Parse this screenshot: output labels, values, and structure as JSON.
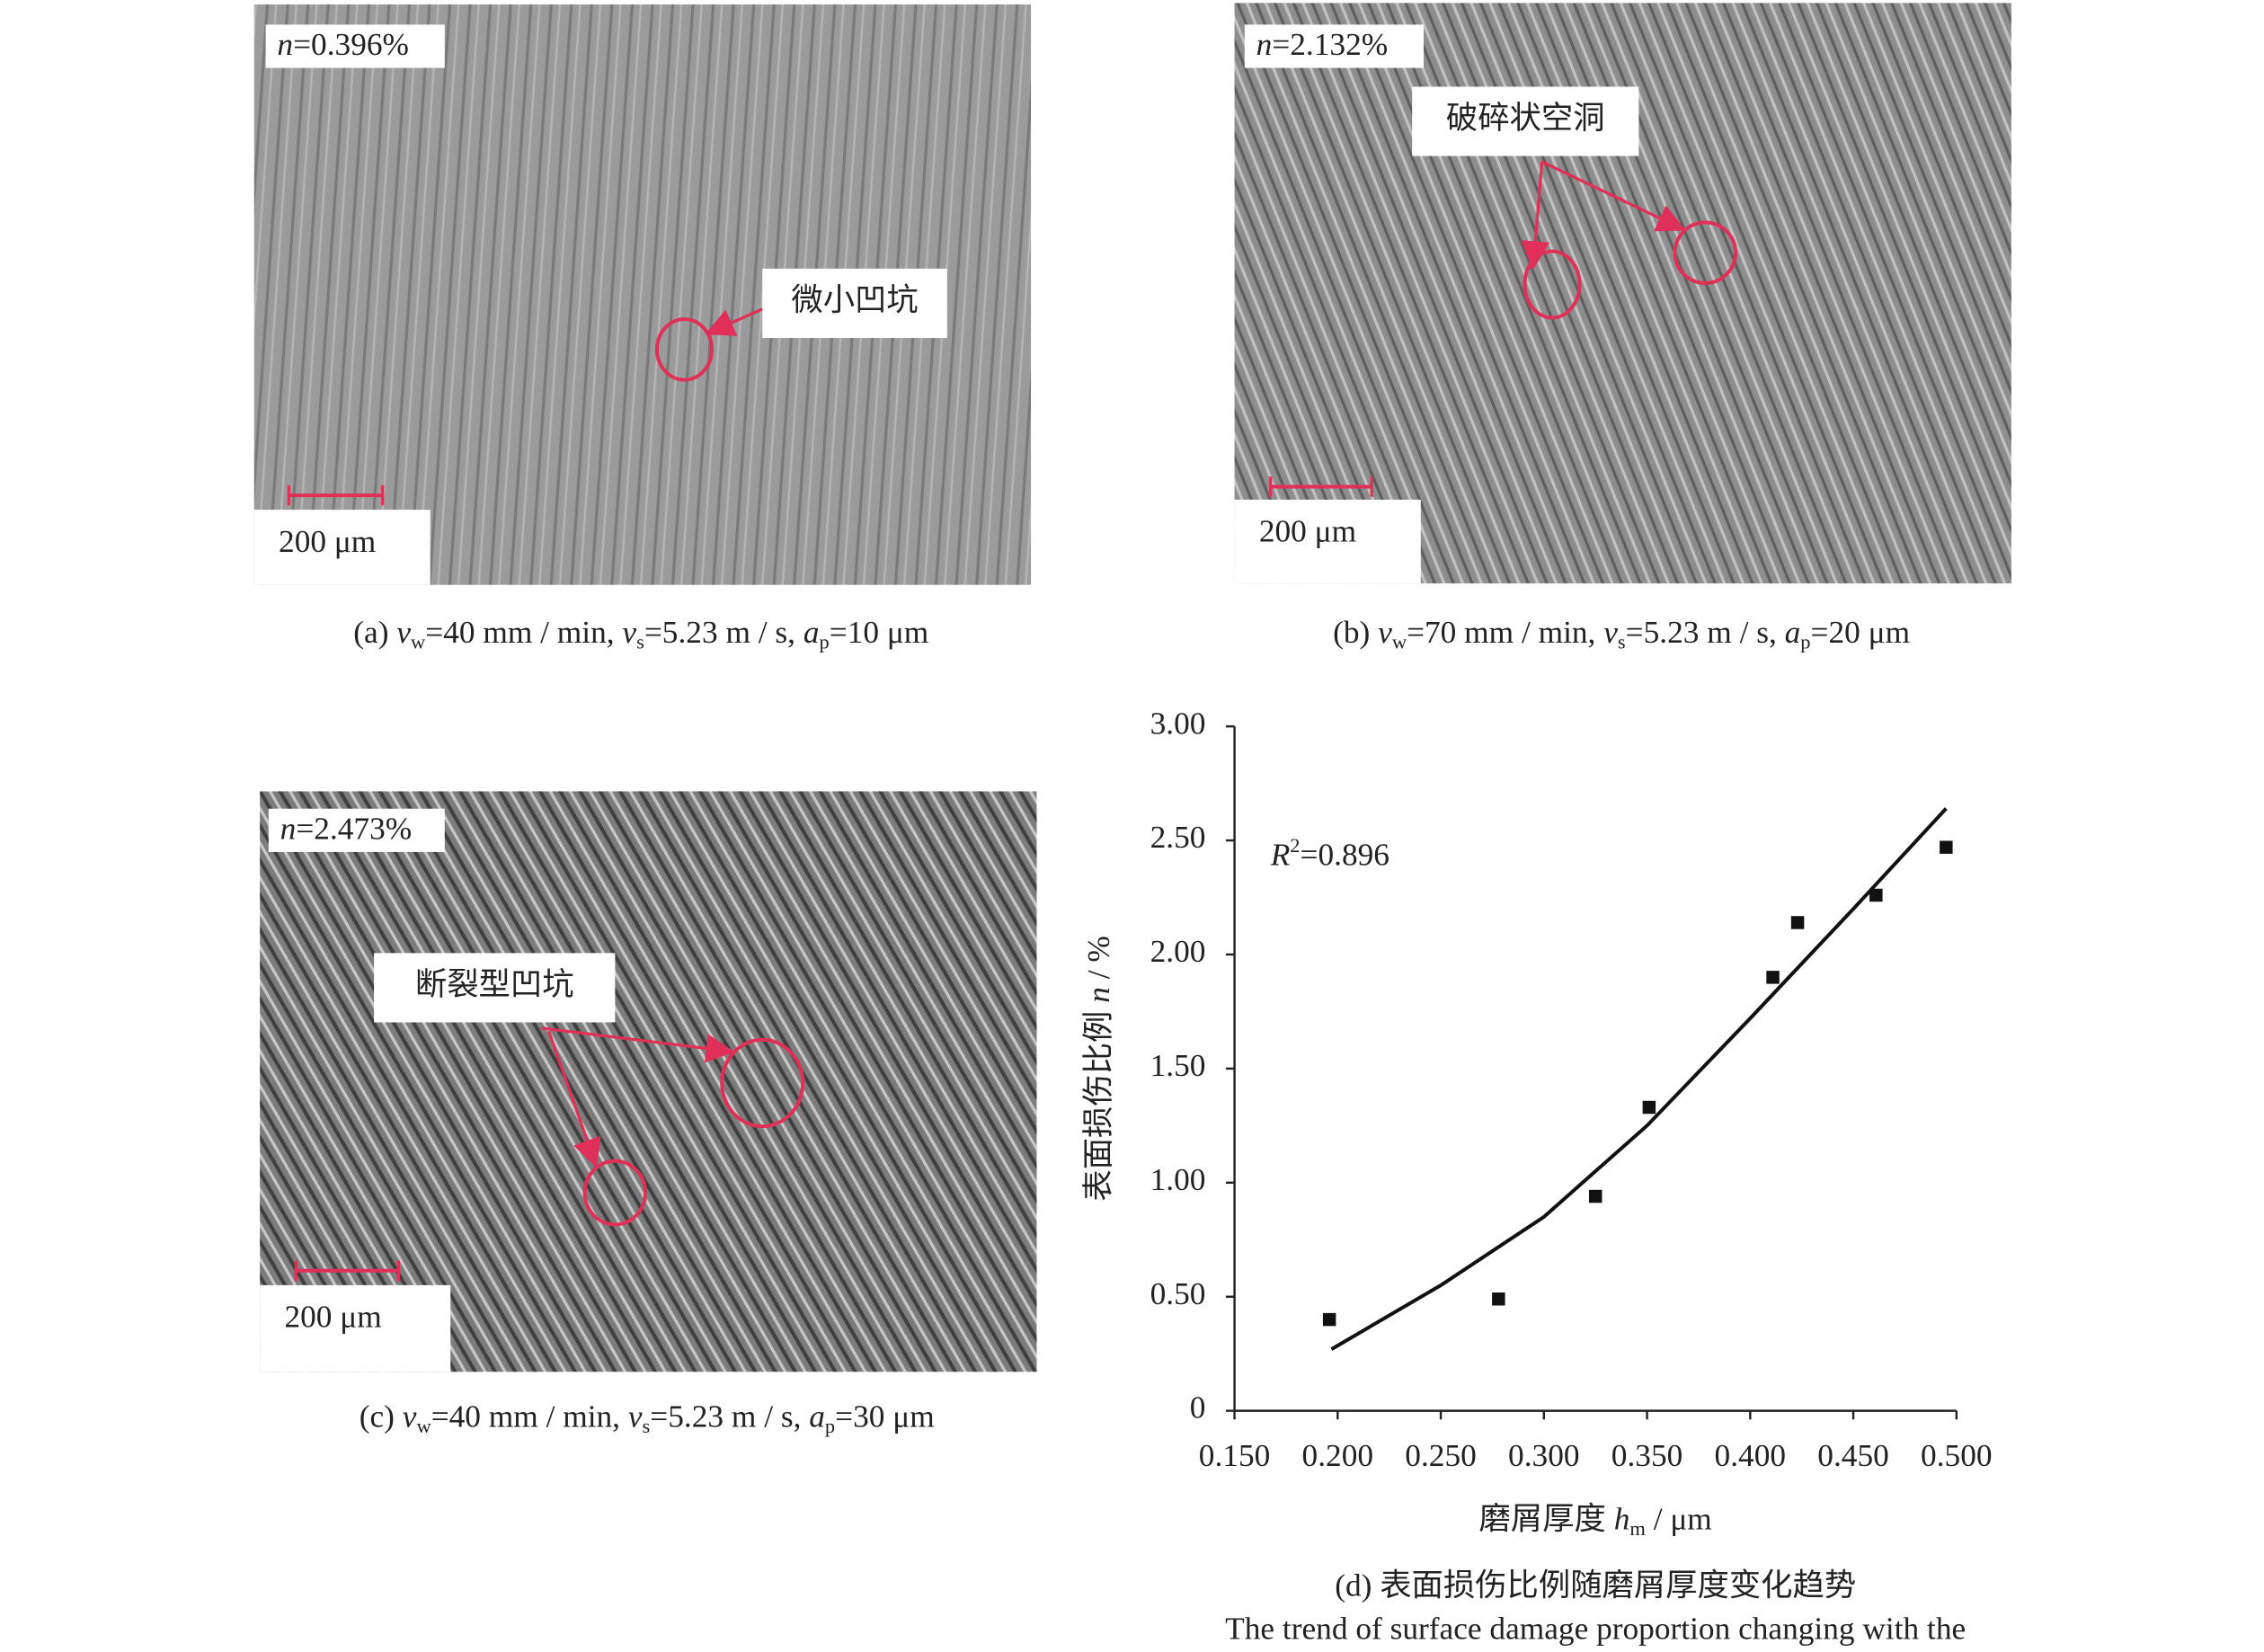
{
  "panels": [
    {
      "n": [
        "n",
        "=0.396%"
      ],
      "annotation": "微小凹坑",
      "scale": "200 μm",
      "caption": [
        "(a) ",
        "v",
        "w",
        "=40 mm / min, ",
        "v",
        "s",
        "=5.23 m / s, ",
        "a",
        "p",
        "=10 μm"
      ]
    },
    {
      "n": [
        "n",
        "=2.132%"
      ],
      "annotation": "破碎状空洞",
      "scale": "200 μm",
      "caption": [
        "(b) ",
        "v",
        "w",
        "=70 mm / min, ",
        "v",
        "s",
        "=5.23 m / s, ",
        "a",
        "p",
        "=20 μm"
      ]
    },
    {
      "n": [
        "n",
        "=2.473%"
      ],
      "annotation": "断裂型凹坑",
      "scale": "200 μm",
      "caption": [
        "(c) ",
        "v",
        "w",
        "=40 mm / min, ",
        "v",
        "s",
        "=5.23 m / s, ",
        "a",
        "p",
        "=30 μm"
      ]
    }
  ],
  "chart_data": {
    "type": "scatter",
    "x": [
      0.196,
      0.278,
      0.325,
      0.351,
      0.411,
      0.423,
      0.461,
      0.495
    ],
    "values": [
      0.4,
      0.49,
      0.94,
      1.33,
      1.9,
      2.14,
      2.26,
      2.47
    ],
    "color": "#111111",
    "trend": {
      "x": [
        0.197,
        0.25,
        0.3,
        0.35,
        0.4,
        0.45,
        0.495
      ],
      "values": [
        0.27,
        0.55,
        0.85,
        1.25,
        1.72,
        2.2,
        2.64
      ]
    },
    "annotation": [
      "R",
      "2",
      "=0.896"
    ],
    "xlim": [
      0.15,
      0.5
    ],
    "xticks": [
      {
        "value": 0.15,
        "label": "0.150"
      },
      {
        "value": 0.2,
        "label": "0.200"
      },
      {
        "value": 0.25,
        "label": "0.250"
      },
      {
        "value": 0.3,
        "label": "0.300"
      },
      {
        "value": 0.35,
        "label": "0.350"
      },
      {
        "value": 0.4,
        "label": "0.400"
      },
      {
        "value": 0.45,
        "label": "0.450"
      },
      {
        "value": 0.5,
        "label": "0.500"
      }
    ],
    "ylim": [
      0,
      3
    ],
    "yticks": [
      0,
      {
        "value": 0.5,
        "label": "0.50"
      },
      {
        "value": 1,
        "label": "1.00"
      },
      {
        "value": 1.5,
        "label": "1.50"
      },
      {
        "value": 2,
        "label": "2.00"
      },
      {
        "value": 2.5,
        "label": "2.50"
      },
      {
        "value": 3,
        "label": "3.00"
      }
    ],
    "x_label": [
      "磨屑厚度 ",
      "h",
      "m",
      " / μm"
    ],
    "y_label": [
      "表面损伤比例 ",
      "n",
      " / %"
    ],
    "caption": "(d) 表面损伤比例随磨屑厚度变化趋势",
    "caption_en": "The trend of surface damage proportion changing with the"
  }
}
